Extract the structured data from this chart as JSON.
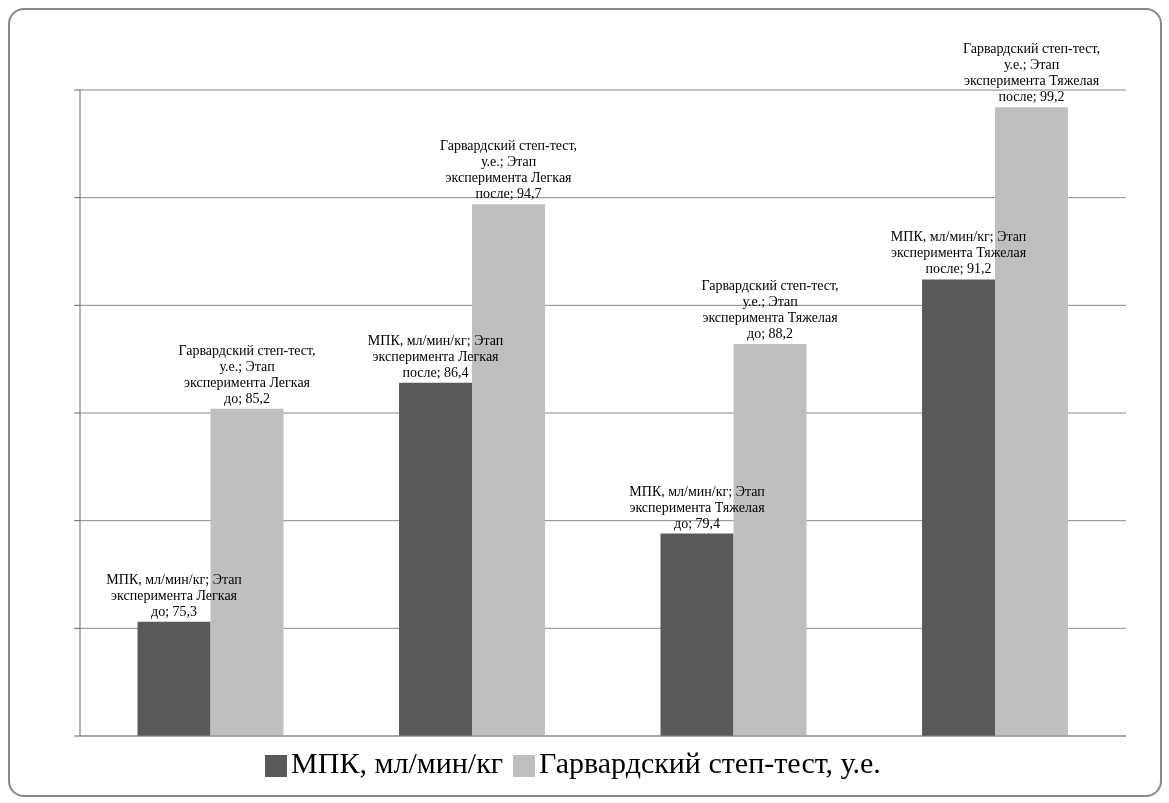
{
  "chart_data": {
    "type": "bar",
    "categories": [
      null,
      null,
      null,
      null
    ],
    "series": [
      {
        "name": "МПК, мл/мин/кг",
        "color": "#595959",
        "values": [
          75.3,
          86.4,
          79.4,
          91.2
        ],
        "value_labels": [
          "МПК, мл/мин/кг; Этап эксперимента Легкая до; 75,3",
          "МПК, мл/мин/кг; Этап эксперимента Легкая после; 86,4",
          "МПК, мл/мин/кг; Этап эксперимента Тяжелая до; 79,4",
          "МПК, мл/мин/кг; Этап эксперимента Тяжелая после; 91,2"
        ]
      },
      {
        "name": "Гарвардский степ-тест, у.е.",
        "color": "#bfbfbf",
        "values": [
          85.2,
          94.7,
          88.2,
          99.2
        ],
        "value_labels": [
          "Гарвардский степ-тест, у.е.; Этап эксперимента Легкая до; 85,2",
          "Гарвардский степ-тест, у.е.; Этап эксперимента Легкая после; 94,7",
          "Гарвардский степ-тест, у.е.; Этап эксперимента Тяжелая до; 88,2",
          "Гарвардский степ-тест, у.е.; Этап эксперимента Тяжелая после; 99,2"
        ]
      }
    ],
    "ylim": [
      70,
      100
    ],
    "yticks": [
      {
        "value": 70,
        "label": null
      },
      {
        "value": 75,
        "label": null
      },
      {
        "value": 80,
        "label": null
      },
      {
        "value": 85,
        "label": null
      },
      {
        "value": 90,
        "label": null
      },
      {
        "value": 95,
        "label": null
      },
      {
        "value": 100,
        "label": null
      }
    ],
    "grid": "y",
    "legend": "bottom"
  }
}
